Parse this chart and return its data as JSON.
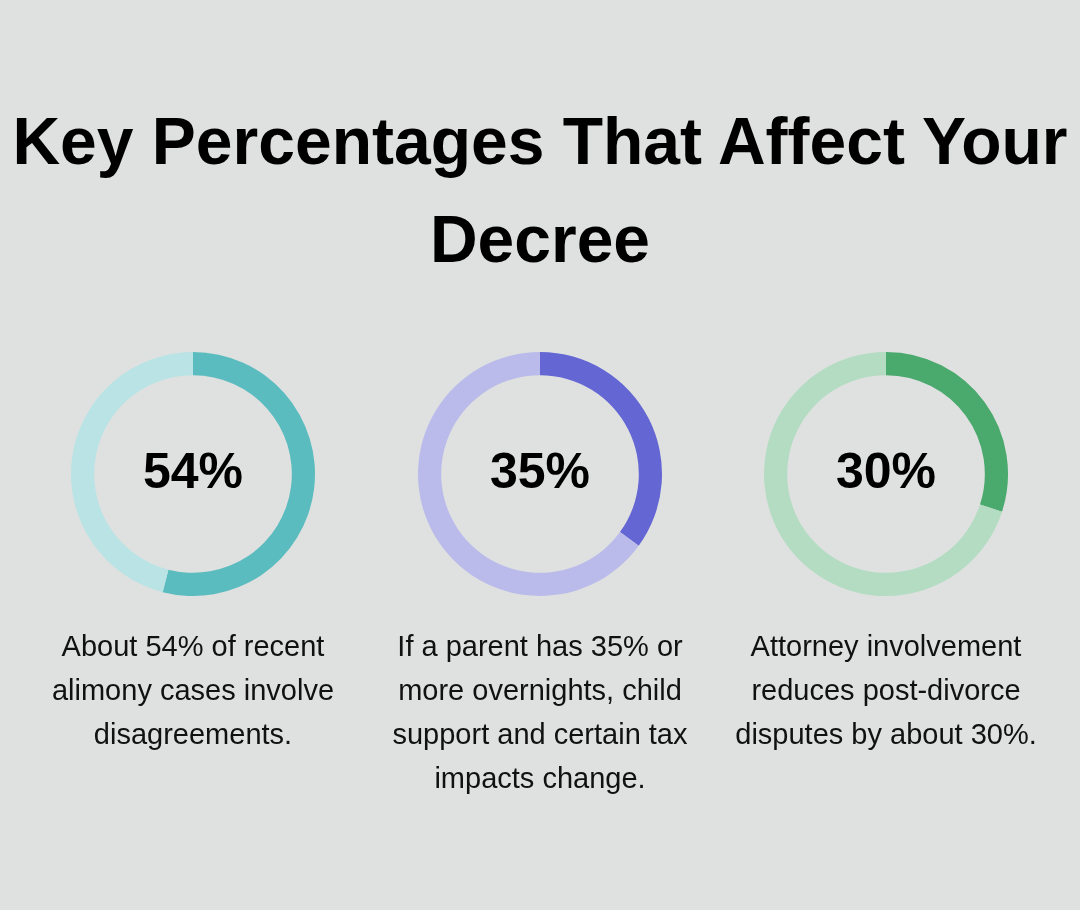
{
  "chart_data": [
    {
      "type": "donut",
      "title": "Key Percentages That Affect Your Decree",
      "categories": [
        null,
        null
      ],
      "values": [
        54,
        46
      ],
      "colors": [
        "#5bbcbf",
        "#b9e3e4"
      ],
      "value_labels": [
        "54%",
        null
      ],
      "annotations": [
        "About 54% of recent alimony cases involve disagreements."
      ]
    },
    {
      "type": "donut",
      "categories": [
        null,
        null
      ],
      "values": [
        35,
        65
      ],
      "colors": [
        "#6366d3",
        "#babbea"
      ],
      "value_labels": [
        "35%",
        null
      ],
      "annotations": [
        "If a parent has 35% or more overnights, child support and certain tax impacts change."
      ]
    },
    {
      "type": "donut",
      "categories": [
        null,
        null
      ],
      "values": [
        30,
        70
      ],
      "colors": [
        "#4aa96c",
        "#b3dcc2"
      ],
      "value_labels": [
        "30%",
        null
      ],
      "annotations": [
        "Attorney involvement reduces post-divorce disputes by about 30%."
      ]
    }
  ]
}
